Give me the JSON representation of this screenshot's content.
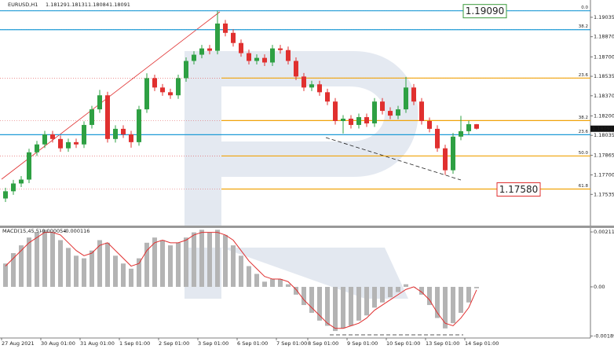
{
  "chart_data": {
    "type": "candlestick",
    "symbol": "EURUSD,H1",
    "times": [
      "27 Aug 2021",
      null,
      null,
      null,
      null,
      "30 Aug 01:00",
      null,
      null,
      null,
      null,
      "31 Aug 01:00",
      null,
      null,
      null,
      null,
      "1 Sep 01:00",
      null,
      null,
      null,
      null,
      "2 Sep 01:00",
      null,
      null,
      null,
      null,
      "3 Sep 01:00",
      null,
      null,
      null,
      null,
      "6 Sep 01:00",
      null,
      null,
      null,
      null,
      "7 Sep 01:00",
      null,
      null,
      null,
      "8 Sep 01:00",
      null,
      null,
      null,
      null,
      "9 Sep 01:00",
      null,
      null,
      null,
      null,
      "10 Sep 01:00",
      null,
      null,
      null,
      null,
      "13 Sep 01:00",
      null,
      null,
      null,
      null,
      "14 Sep 01:00",
      null
    ],
    "open": [
      1.175,
      1.17561,
      1.17627,
      1.1766,
      1.17891,
      1.17958,
      1.18043,
      1.18004,
      1.17925,
      1.17977,
      1.17958,
      1.18123,
      1.18255,
      1.18374,
      1.18004,
      1.1809,
      1.18043,
      1.17977,
      1.18255,
      1.18519,
      1.1844,
      1.184,
      1.18374,
      1.18519,
      1.18665,
      1.18718,
      1.18771,
      1.18751,
      1.18982,
      1.18903,
      1.18817,
      1.18731,
      1.18665,
      1.18691,
      1.18652,
      1.18771,
      1.18757,
      1.18665,
      1.18533,
      1.1844,
      1.18467,
      1.184,
      1.18321,
      1.18156,
      1.18176,
      1.18123,
      1.18189,
      1.18136,
      1.18321,
      1.18242,
      1.18202,
      1.18255,
      1.1844,
      1.18321,
      1.18156,
      1.1809,
      1.17925,
      1.17739,
      1.18024,
      1.1807,
      1.18129
    ],
    "high": [
      1.17591,
      1.17657,
      1.1769,
      1.17921,
      1.17988,
      1.18073,
      1.18073,
      1.18034,
      1.18007,
      1.18007,
      1.18153,
      1.18285,
      1.1842,
      1.18404,
      1.1812,
      1.1812,
      1.18073,
      1.18285,
      1.1856,
      1.18549,
      1.1847,
      1.1843,
      1.18549,
      1.18695,
      1.18748,
      1.18801,
      1.18801,
      1.1909,
      1.19012,
      1.18933,
      1.18847,
      1.18761,
      1.18721,
      1.18721,
      1.18801,
      1.18801,
      1.18787,
      1.18695,
      1.18563,
      1.18497,
      1.18497,
      1.1843,
      1.18351,
      1.18206,
      1.18206,
      1.18219,
      1.18219,
      1.18351,
      1.18351,
      1.18272,
      1.18285,
      1.1853,
      1.1847,
      1.18351,
      1.18186,
      1.1812,
      1.17955,
      1.18054,
      1.182,
      1.18159,
      1.18131
    ],
    "low": [
      1.1747,
      1.17531,
      1.17597,
      1.1763,
      1.17861,
      1.17928,
      1.17974,
      1.17895,
      1.17895,
      1.17928,
      1.17928,
      1.18093,
      1.18225,
      1.17974,
      1.17974,
      1.18013,
      1.1793,
      1.17947,
      1.18225,
      1.1841,
      1.1837,
      1.18344,
      1.18344,
      1.18489,
      1.18635,
      1.18688,
      1.18721,
      1.18721,
      1.18873,
      1.18787,
      1.18701,
      1.18635,
      1.18635,
      1.18622,
      1.18622,
      1.18727,
      1.18635,
      1.18503,
      1.1841,
      1.1841,
      1.1837,
      1.18291,
      1.18126,
      1.1805,
      1.18093,
      1.18093,
      1.18106,
      1.18106,
      1.18212,
      1.18172,
      1.18172,
      1.18225,
      1.18291,
      1.18126,
      1.1806,
      1.17895,
      1.177,
      1.17709,
      1.17994,
      1.1804,
      1.18084
    ],
    "close": [
      1.17561,
      1.17627,
      1.1766,
      1.17891,
      1.17958,
      1.18043,
      1.18004,
      1.17925,
      1.17977,
      1.17958,
      1.18123,
      1.18255,
      1.18374,
      1.18004,
      1.1809,
      1.18043,
      1.17977,
      1.18255,
      1.18519,
      1.1844,
      1.184,
      1.18374,
      1.18519,
      1.18665,
      1.18718,
      1.18771,
      1.18751,
      1.18982,
      1.18903,
      1.18817,
      1.18731,
      1.18665,
      1.18691,
      1.18652,
      1.18771,
      1.18757,
      1.18665,
      1.18533,
      1.1844,
      1.18467,
      1.184,
      1.18321,
      1.18156,
      1.18176,
      1.18123,
      1.18189,
      1.18136,
      1.18321,
      1.18242,
      1.18202,
      1.18255,
      1.1844,
      1.18321,
      1.18156,
      1.1809,
      1.17925,
      1.17739,
      1.18024,
      1.1807,
      1.18129,
      1.18091
    ],
    "up_color": "#2ea043",
    "down_color": "#e0302f",
    "ylim": [
      1.17277,
      1.19128
    ],
    "yticks": [
      1.19035,
      {
        "value": 1.1887,
        "label": "1.18870"
      },
      {
        "value": 1.187,
        "label": "1.18700"
      },
      1.18535,
      {
        "value": 1.1837,
        "label": "1.18370"
      },
      {
        "value": 1.182,
        "label": "1.18200"
      },
      1.18035,
      1.17865,
      {
        "value": 1.177,
        "label": "1.17700"
      },
      1.17535
    ],
    "grid": false,
    "levels": [
      {
        "label": "0.0",
        "value": 1.1909,
        "color": "#1e9bd7"
      },
      {
        "label": "38.2",
        "value": 1.1893,
        "color": "#1e9bd7"
      },
      {
        "label": "23.6",
        "value": 1.1852,
        "color": "#f0a30a"
      },
      {
        "label": "38.2",
        "value": 1.1816,
        "color": "#f0a30a"
      },
      {
        "label": "23.6",
        "value": 1.1804,
        "color": "#1e9bd7"
      },
      {
        "label": "50.0",
        "value": 1.1786,
        "color": "#f0a30a"
      },
      {
        "label": "61.8",
        "value": 1.1758,
        "color": "#f0a30a"
      }
    ],
    "targets": [
      {
        "value": 1.1909,
        "label": "1.19090",
        "color": "#3a9a3a"
      },
      {
        "value": 1.1758,
        "label": "1.17580",
        "color": "#e03030"
      }
    ],
    "indicator": {
      "type": "macd",
      "name": "MACD(15,45,5)",
      "histogram": [
        0.0009,
        0.0013,
        0.0016,
        0.0019,
        0.0021,
        0.0022,
        0.0021,
        0.0018,
        0.0015,
        0.0012,
        0.0011,
        0.0014,
        0.0018,
        0.0017,
        0.0012,
        0.0009,
        0.0007,
        0.0011,
        0.0017,
        0.0019,
        0.0018,
        0.0016,
        0.0017,
        0.0019,
        0.0021,
        0.0022,
        0.0021,
        0.0022,
        0.002,
        0.0016,
        0.0012,
        0.0008,
        0.0005,
        0.0002,
        0.0003,
        0.0003,
        0.0001,
        -0.0003,
        -0.0007,
        -0.001,
        -0.0013,
        -0.0015,
        -0.0017,
        -0.0016,
        -0.0015,
        -0.0013,
        -0.0011,
        -0.0008,
        -0.0006,
        -0.0004,
        -0.0002,
        0.0001,
        0,
        -0.0003,
        -0.0007,
        -0.0012,
        -0.0016,
        -0.0014,
        -0.001,
        -0.0006,
        -5.4e-05
      ],
      "signal": [
        0.0008,
        0.0011,
        0.0014,
        0.0017,
        0.0019,
        0.0021,
        0.0021,
        0.002,
        0.0017,
        0.0014,
        0.0012,
        0.0013,
        0.0016,
        0.0017,
        0.0014,
        0.0011,
        0.0008,
        0.0009,
        0.0014,
        0.0017,
        0.0018,
        0.0017,
        0.0017,
        0.0018,
        0.002,
        0.0021,
        0.0021,
        0.0021,
        0.002,
        0.0018,
        0.0014,
        0.001,
        0.0007,
        0.0004,
        0.0003,
        0.0003,
        0.0002,
        -0.0001,
        -0.0005,
        -0.0008,
        -0.0011,
        -0.0014,
        -0.0016,
        -0.0016,
        -0.0015,
        -0.0014,
        -0.0012,
        -0.0009,
        -0.0007,
        -0.0005,
        -0.0003,
        -0.0001,
        0,
        -0.0002,
        -0.0005,
        -0.001,
        -0.0014,
        -0.0015,
        -0.0012,
        -0.0008,
        -0.000116
      ],
      "hist_color": "#b4b4b4",
      "signal_color": "#e03030",
      "ylim": [
        -0.00197,
        0.00227
      ],
      "yticks": [
        0.002117,
        {
          "value": 0,
          "label": "0.00"
        },
        -0.00189
      ]
    }
  }
}
